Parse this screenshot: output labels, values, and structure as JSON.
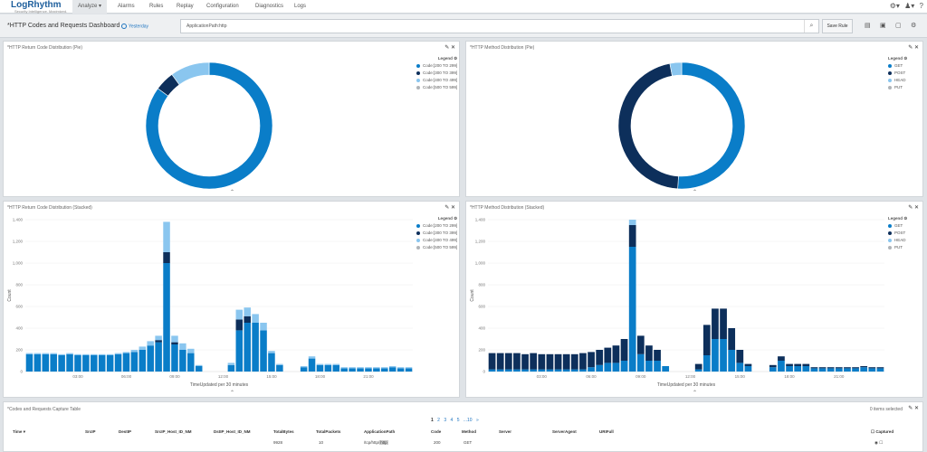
{
  "app": {
    "logo_text": "LogRhythm",
    "logo_tagline": "Security Intelligence. Maximized.",
    "nav": [
      {
        "label": "Analyze",
        "active": true
      },
      {
        "label": "Alarms"
      },
      {
        "label": "Rules"
      },
      {
        "label": "Replay"
      },
      {
        "label": "Configuration"
      },
      {
        "label": "Diagnostics"
      },
      {
        "label": "Logs"
      }
    ],
    "top_icons": [
      "settings-icon",
      "user-icon",
      "help-icon"
    ]
  },
  "dashboard": {
    "title": "*HTTP Codes and Requests Dashboard",
    "time_range": "Yesterday",
    "search_value": "ApplicationPath:http",
    "save_label": "Save Rule",
    "toolbar_icons": [
      "new-icon",
      "save-icon",
      "open-icon",
      "settings-icon"
    ]
  },
  "colors": {
    "code_200_299": "#0a7dc8",
    "code_300_399": "#0d2f5b",
    "code_400_499": "#8ac6ef",
    "code_500_599": "#b0b4b8",
    "get": "#0a7dc8",
    "post": "#0d2f5b",
    "head": "#8ac6ef",
    "put": "#b0b4b8"
  },
  "panels": {
    "pie_code": {
      "title": "*HTTP Return Code Distribution (Pie)",
      "legend_title": "Legend",
      "legend": [
        "Code:[200 TO 299]",
        "Code:[300 TO 399]",
        "Code:[400 TO 499]",
        "Code:[500 TO 599]"
      ]
    },
    "pie_method": {
      "title": "*HTTP Method Distribution (Pie)",
      "legend_title": "Legend",
      "legend": [
        "GET",
        "POST",
        "HEAD",
        "PUT"
      ]
    },
    "bar_code": {
      "title": "*HTTP Return Code Distribution (Stacked)",
      "legend_title": "Legend",
      "legend": [
        "Code:[200 TO 299]",
        "Code:[300 TO 399]",
        "Code:[400 TO 499]",
        "Code:[500 TO 599]"
      ],
      "xlabel": "TimeUpdated per 30 minutes",
      "ylabel": "Count"
    },
    "bar_method": {
      "title": "*HTTP Method Distribution (Stacked)",
      "legend_title": "Legend",
      "legend": [
        "GET",
        "POST",
        "HEAD",
        "PUT"
      ],
      "xlabel": "TimeUpdated per 30 minutes",
      "ylabel": "Count"
    }
  },
  "chart_data": [
    {
      "type": "pie",
      "title": "*HTTP Return Code Distribution (Pie)",
      "labels": [
        "Code:[200 TO 299]",
        "Code:[300 TO 399]",
        "Code:[400 TO 499]",
        "Code:[500 TO 599]"
      ],
      "values": [
        85,
        5,
        10,
        0
      ]
    },
    {
      "type": "pie",
      "title": "*HTTP Method Distribution (Pie)",
      "labels": [
        "GET",
        "POST",
        "HEAD",
        "PUT"
      ],
      "values": [
        51,
        46,
        3,
        0
      ]
    },
    {
      "type": "bar",
      "title": "*HTTP Return Code Distribution (Stacked)",
      "xlabel": "TimeUpdated per 30 minutes",
      "ylabel": "Count",
      "ylim": [
        0,
        1400
      ],
      "yticks": [
        "0",
        "200",
        "400",
        "600",
        "800",
        "1,000",
        "1,200",
        "1,400"
      ],
      "xticks": [
        {
          "label": "03:00",
          "index": 6
        },
        {
          "label": "06:00",
          "index": 12
        },
        {
          "label": "09:00",
          "index": 18
        },
        {
          "label": "12:00",
          "index": 24
        },
        {
          "label": "15:00",
          "index": 30
        },
        {
          "label": "18:00",
          "index": 36
        },
        {
          "label": "21:00",
          "index": 42
        }
      ],
      "slots": 48,
      "series": [
        {
          "name": "Code:[200 TO 299]",
          "values": [
            160,
            160,
            160,
            160,
            150,
            160,
            150,
            150,
            150,
            150,
            150,
            160,
            170,
            180,
            200,
            240,
            270,
            1000,
            250,
            200,
            170,
            50,
            0,
            0,
            0,
            60,
            380,
            450,
            450,
            380,
            170,
            60,
            0,
            0,
            40,
            120,
            60,
            60,
            60,
            30,
            30,
            30,
            30,
            30,
            30,
            40,
            30,
            30
          ]
        },
        {
          "name": "Code:[300 TO 399]",
          "values": [
            0,
            0,
            0,
            0,
            0,
            0,
            0,
            0,
            0,
            0,
            0,
            0,
            0,
            0,
            0,
            0,
            20,
            100,
            20,
            0,
            0,
            0,
            0,
            0,
            0,
            0,
            100,
            60,
            0,
            0,
            0,
            0,
            0,
            0,
            0,
            0,
            0,
            0,
            0,
            0,
            0,
            0,
            0,
            0,
            0,
            0,
            0,
            0
          ]
        },
        {
          "name": "Code:[400 TO 499]",
          "values": [
            10,
            10,
            10,
            10,
            10,
            10,
            10,
            10,
            10,
            10,
            10,
            10,
            10,
            20,
            30,
            40,
            40,
            280,
            60,
            60,
            40,
            10,
            0,
            0,
            0,
            20,
            90,
            80,
            80,
            70,
            20,
            10,
            0,
            0,
            10,
            20,
            10,
            10,
            10,
            10,
            10,
            10,
            10,
            10,
            10,
            10,
            10,
            10
          ]
        },
        {
          "name": "Code:[500 TO 599]",
          "values": [
            0,
            0,
            0,
            0,
            0,
            0,
            0,
            0,
            0,
            0,
            0,
            0,
            0,
            0,
            0,
            0,
            0,
            0,
            0,
            0,
            0,
            0,
            0,
            0,
            0,
            0,
            0,
            0,
            0,
            0,
            0,
            0,
            0,
            0,
            0,
            0,
            0,
            0,
            0,
            0,
            0,
            0,
            0,
            0,
            0,
            0,
            0,
            0
          ]
        }
      ]
    },
    {
      "type": "bar",
      "title": "*HTTP Method Distribution (Stacked)",
      "xlabel": "TimeUpdated per 30 minutes",
      "ylabel": "Count",
      "ylim": [
        0,
        1400
      ],
      "yticks": [
        "0",
        "200",
        "400",
        "600",
        "800",
        "1,000",
        "1,200",
        "1,400"
      ],
      "xticks": [
        {
          "label": "03:00",
          "index": 6
        },
        {
          "label": "06:00",
          "index": 12
        },
        {
          "label": "09:00",
          "index": 18
        },
        {
          "label": "12:00",
          "index": 24
        },
        {
          "label": "15:00",
          "index": 30
        },
        {
          "label": "18:00",
          "index": 36
        },
        {
          "label": "21:00",
          "index": 42
        }
      ],
      "slots": 48,
      "series": [
        {
          "name": "GET",
          "values": [
            20,
            20,
            20,
            20,
            20,
            20,
            20,
            20,
            20,
            20,
            20,
            20,
            40,
            60,
            80,
            80,
            100,
            1150,
            160,
            100,
            100,
            50,
            0,
            0,
            0,
            20,
            150,
            300,
            300,
            200,
            80,
            50,
            0,
            0,
            40,
            100,
            50,
            50,
            50,
            30,
            30,
            30,
            30,
            30,
            30,
            40,
            30,
            30
          ]
        },
        {
          "name": "POST",
          "values": [
            150,
            150,
            150,
            150,
            140,
            150,
            140,
            140,
            140,
            140,
            140,
            150,
            140,
            140,
            140,
            160,
            200,
            200,
            170,
            140,
            100,
            0,
            0,
            0,
            0,
            50,
            280,
            280,
            280,
            200,
            120,
            20,
            0,
            0,
            20,
            40,
            20,
            20,
            20,
            10,
            10,
            10,
            10,
            10,
            10,
            10,
            10,
            10
          ]
        },
        {
          "name": "HEAD",
          "values": [
            0,
            0,
            0,
            0,
            0,
            0,
            0,
            0,
            0,
            0,
            0,
            0,
            0,
            0,
            0,
            0,
            0,
            50,
            0,
            0,
            0,
            0,
            0,
            0,
            0,
            0,
            0,
            0,
            0,
            0,
            0,
            0,
            0,
            0,
            0,
            0,
            0,
            0,
            0,
            0,
            0,
            0,
            0,
            0,
            0,
            0,
            0,
            0
          ]
        },
        {
          "name": "PUT",
          "values": [
            0,
            0,
            0,
            0,
            0,
            0,
            0,
            0,
            0,
            0,
            0,
            0,
            0,
            0,
            0,
            0,
            0,
            0,
            0,
            0,
            0,
            0,
            0,
            0,
            0,
            0,
            0,
            0,
            0,
            0,
            0,
            0,
            0,
            0,
            0,
            0,
            0,
            0,
            0,
            0,
            0,
            0,
            0,
            0,
            0,
            0,
            0,
            0
          ]
        }
      ]
    }
  ],
  "table": {
    "title": "*Codes and Requests Capture Table",
    "selection": "0 items selected",
    "pages": [
      "1",
      "2",
      "3",
      "4",
      "5",
      "...10",
      "»"
    ],
    "columns": [
      "Time",
      "SrcIP",
      "DestIP",
      "SrcIP_Host_ID_NM",
      "DstIP_Host_ID_NM",
      "TotalBytes",
      "TotalPackets",
      "ApplicationPath",
      "Code",
      "Method",
      "Server",
      "ServerAgent",
      "URIFull",
      "Captured"
    ],
    "row": {
      "TotalBytes": "9928",
      "TotalPackets": "10",
      "ApplicationPath_prefix": "/tcp/http/",
      "ApplicationPath_highlight": "http",
      "Code": "200",
      "Method": "GET"
    }
  }
}
